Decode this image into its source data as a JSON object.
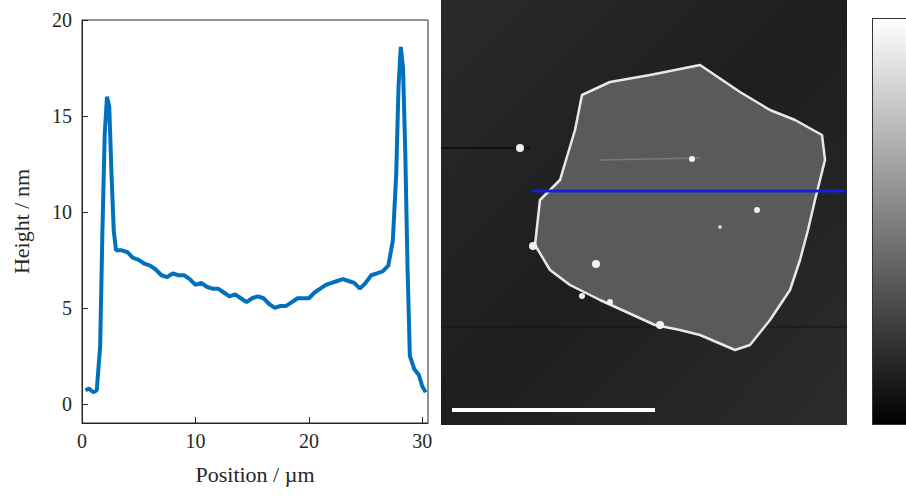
{
  "chart_data": {
    "type": "line",
    "x_label": "Position / µm",
    "y_label": "Height / nm",
    "color": "#0072bd",
    "grid": false,
    "xlim": [
      0,
      30.5
    ],
    "ylim": [
      -1,
      20
    ],
    "xticks": [
      0,
      10,
      20,
      30
    ],
    "yticks": [
      0,
      5,
      10,
      15,
      20
    ],
    "x": [
      0.3,
      0.6,
      1.0,
      1.3,
      1.6,
      1.8,
      2.0,
      2.2,
      2.4,
      2.6,
      2.8,
      3.0,
      3.5,
      4.0,
      4.5,
      5.0,
      5.5,
      6.0,
      6.5,
      7.0,
      7.5,
      8.0,
      8.5,
      9.0,
      9.5,
      10.0,
      10.5,
      11.0,
      11.5,
      12.0,
      12.5,
      13.0,
      13.5,
      14.0,
      14.5,
      15.0,
      15.5,
      16.0,
      16.5,
      17.0,
      17.5,
      18.0,
      18.5,
      19.0,
      19.5,
      20.0,
      20.5,
      21.0,
      21.5,
      22.0,
      22.5,
      23.0,
      23.5,
      24.0,
      24.5,
      25.0,
      25.5,
      26.0,
      26.5,
      27.0,
      27.4,
      27.7,
      27.9,
      28.1,
      28.3,
      28.5,
      28.7,
      28.9,
      29.3,
      29.7,
      30.0,
      30.3
    ],
    "values": [
      0.7,
      0.8,
      0.6,
      0.7,
      3.0,
      9.0,
      14.0,
      16.0,
      15.5,
      12.0,
      9.0,
      8.0,
      8.0,
      7.9,
      7.6,
      7.5,
      7.3,
      7.2,
      7.0,
      6.7,
      6.6,
      6.8,
      6.7,
      6.7,
      6.5,
      6.2,
      6.3,
      6.1,
      6.0,
      6.0,
      5.8,
      5.6,
      5.7,
      5.5,
      5.3,
      5.5,
      5.6,
      5.5,
      5.2,
      5.0,
      5.1,
      5.1,
      5.3,
      5.5,
      5.5,
      5.5,
      5.8,
      6.0,
      6.2,
      6.3,
      6.4,
      6.5,
      6.4,
      6.3,
      6.0,
      6.3,
      6.7,
      6.8,
      6.9,
      7.2,
      8.5,
      12.0,
      16.5,
      18.6,
      17.5,
      13.0,
      7.0,
      2.5,
      1.8,
      1.5,
      0.9,
      0.6
    ]
  }
}
